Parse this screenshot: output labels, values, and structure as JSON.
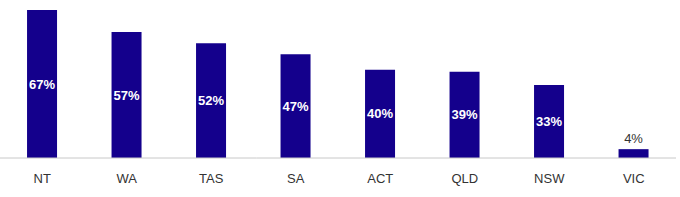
{
  "chart_data": {
    "type": "bar",
    "categories": [
      "NT",
      "WA",
      "TAS",
      "SA",
      "ACT",
      "QLD",
      "NSW",
      "VIC"
    ],
    "values": [
      67,
      57,
      52,
      47,
      40,
      39,
      33,
      4
    ],
    "value_labels": [
      "67%",
      "57%",
      "52%",
      "47%",
      "40%",
      "39%",
      "33%",
      "4%"
    ],
    "color": "#14008c",
    "ylim": [
      0,
      67
    ],
    "data_labels": true,
    "tick_labels": "x",
    "grid": false
  }
}
